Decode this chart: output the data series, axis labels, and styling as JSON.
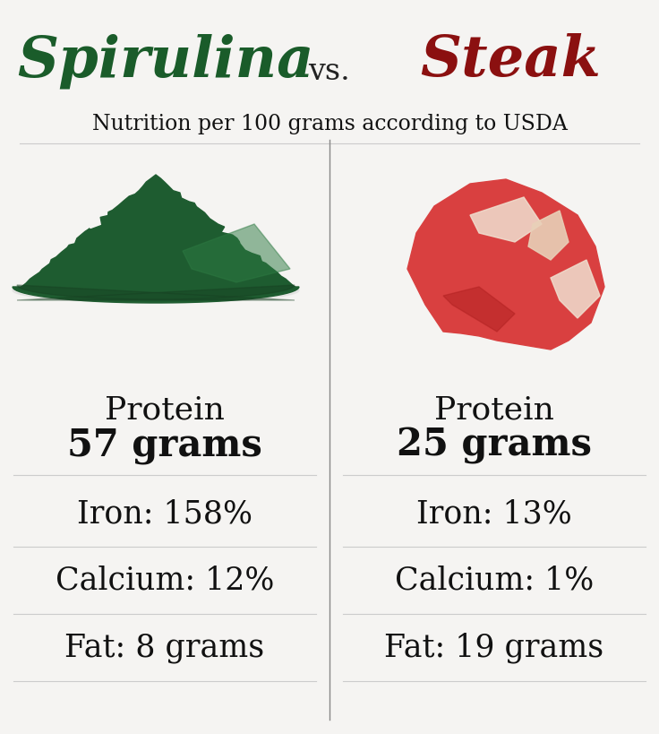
{
  "title_left": "Spirulina",
  "title_vs": "vs.",
  "title_right": "Steak",
  "subtitle": "Nutrition per 100 grams according to USDA",
  "left_color": "#1a5c2a",
  "right_color": "#8b1010",
  "vs_color": "#222222",
  "subtitle_color": "#111111",
  "bg_color": "#f5f4f2",
  "divider_color": "#888888",
  "text_color": "#111111",
  "left_nutrients": [
    "Protein",
    "57 grams",
    "Iron: 158%",
    "Calcium: 12%",
    "Fat: 8 grams"
  ],
  "right_nutrients": [
    "Protein",
    "25 grams",
    "Iron: 13%",
    "Calcium: 1%",
    "Fat: 19 grams"
  ],
  "title_fontsize": 46,
  "vs_fontsize": 24,
  "subtitle_fontsize": 17,
  "protein_label_fontsize": 26,
  "protein_value_fontsize": 30,
  "nutrient_fontsize": 25
}
